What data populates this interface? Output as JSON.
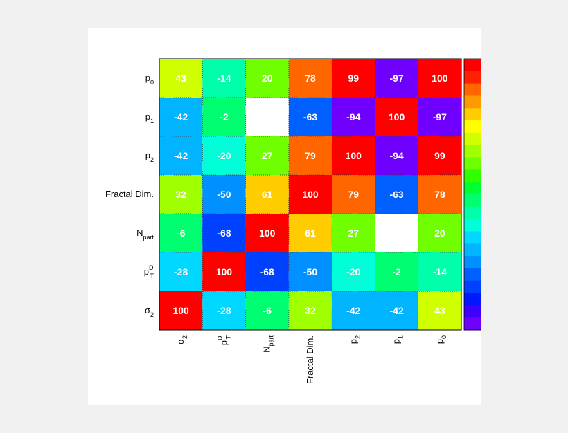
{
  "chart_data": {
    "type": "heatmap",
    "title": "",
    "labels": [
      {
        "main": "σ",
        "sub": "2",
        "sup": ""
      },
      {
        "main": "p",
        "sub": "T",
        "sup": "D"
      },
      {
        "main": "N",
        "sub": "part",
        "sup": ""
      },
      {
        "main": "Fractal Dim.",
        "sub": "",
        "sup": ""
      },
      {
        "main": "p",
        "sub": "2",
        "sup": ""
      },
      {
        "main": "p",
        "sub": "1",
        "sup": ""
      },
      {
        "main": "p",
        "sub": "0",
        "sup": ""
      }
    ],
    "matrix": [
      [
        100,
        -28,
        -6,
        32,
        -42,
        -42,
        43
      ],
      [
        -28,
        100,
        -68,
        -50,
        -20,
        -2,
        -14
      ],
      [
        -6,
        -68,
        100,
        61,
        27,
        null,
        20
      ],
      [
        32,
        -50,
        61,
        100,
        79,
        -63,
        78
      ],
      [
        -42,
        -20,
        27,
        79,
        100,
        -94,
        99
      ],
      [
        -42,
        -2,
        null,
        -63,
        -94,
        100,
        -97
      ],
      [
        43,
        -14,
        20,
        78,
        99,
        -97,
        100
      ]
    ],
    "zrange": [
      -100,
      100
    ],
    "colorbar": true,
    "palette": [
      "#6f00ff",
      "#4000ff",
      "#0018ff",
      "#0040ff",
      "#0060ff",
      "#0090ff",
      "#00b4ff",
      "#00d8ff",
      "#00ffd8",
      "#00ffaa",
      "#00ff70",
      "#00ff30",
      "#30ff00",
      "#70ff00",
      "#a0ff00",
      "#d0ff00",
      "#ffff00",
      "#ffcc00",
      "#ff9900",
      "#ff6600",
      "#ff2200",
      "#ff0000"
    ]
  }
}
